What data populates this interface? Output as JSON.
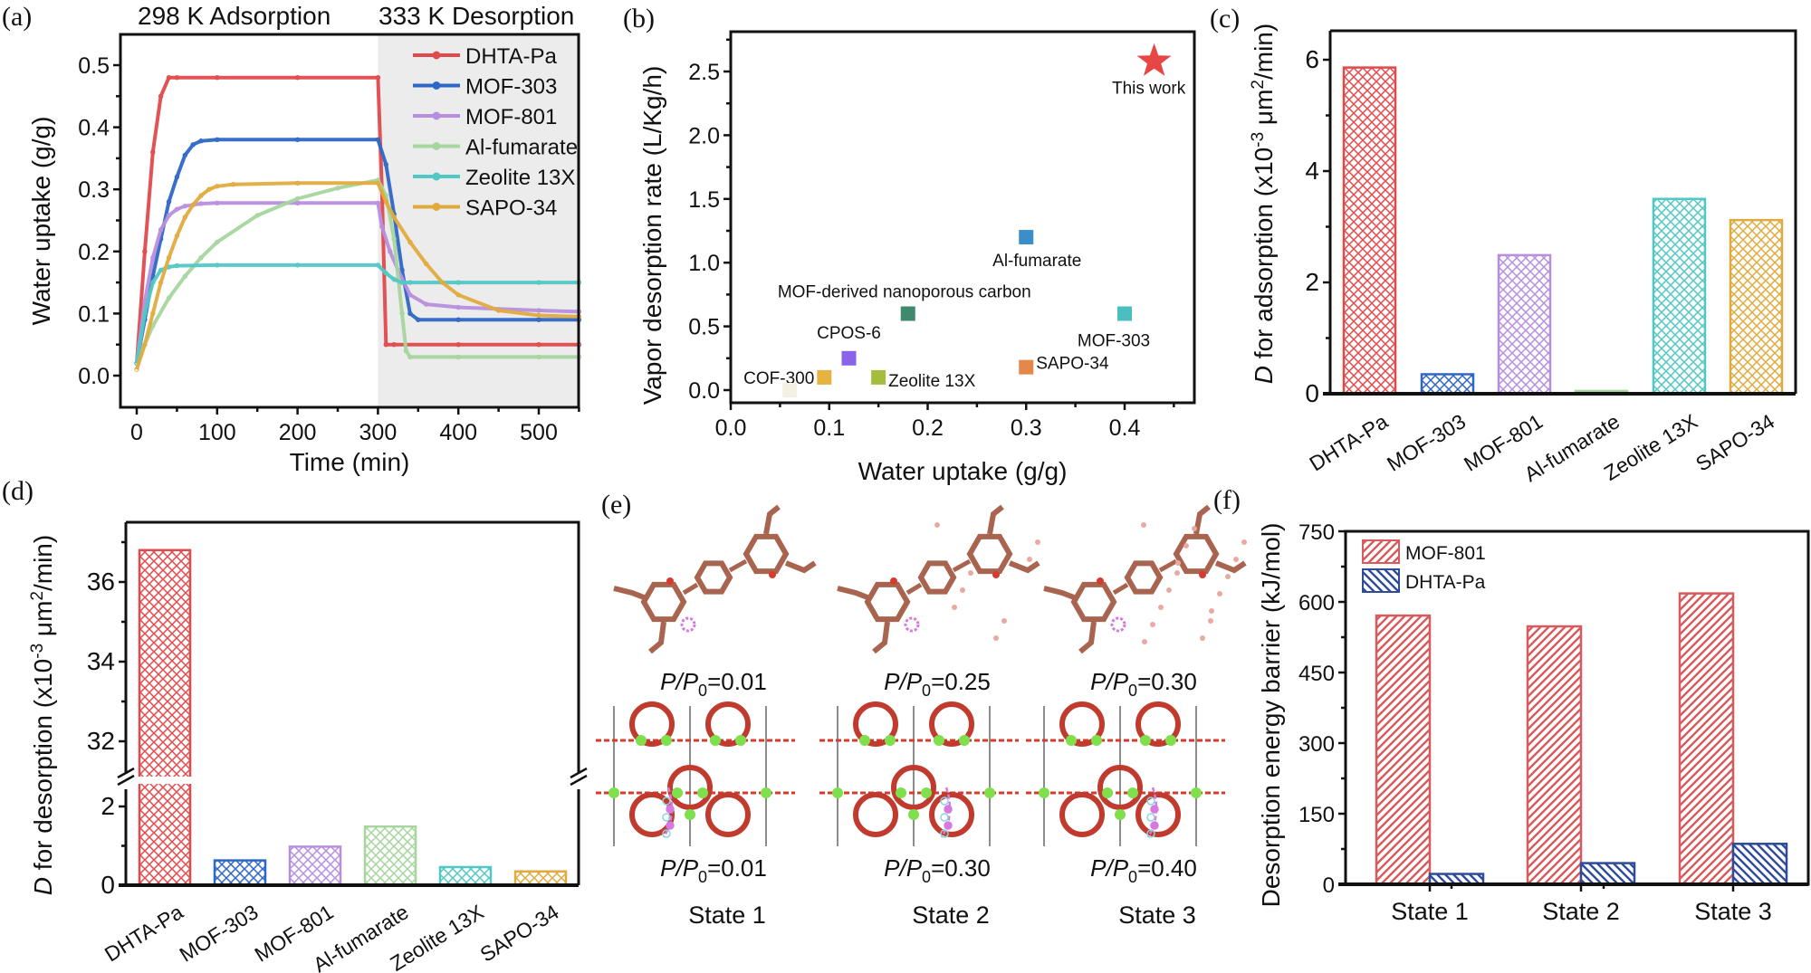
{
  "panels": {
    "a": {
      "letter": "(a)",
      "header_left": "298 K Adsorption",
      "header_right": "333 K Desorption"
    },
    "b": {
      "letter": "(b)"
    },
    "c": {
      "letter": "(c)"
    },
    "d": {
      "letter": "(d)"
    },
    "e": {
      "letter": "(e)",
      "columns": [
        {
          "top_label_var": "P/P",
          "top_label_sub": "0",
          "top_label_val": "=0.01",
          "bottom_label_var": "P/P",
          "bottom_label_sub": "0",
          "bottom_label_val": "=0.01",
          "state": "State 1"
        },
        {
          "top_label_var": "P/P",
          "top_label_sub": "0",
          "top_label_val": "=0.25",
          "bottom_label_var": "P/P",
          "bottom_label_sub": "0",
          "bottom_label_val": "=0.30",
          "state": "State 2"
        },
        {
          "top_label_var": "P/P",
          "top_label_sub": "0",
          "top_label_val": "=0.30",
          "bottom_label_var": "P/P",
          "bottom_label_sub": "0",
          "bottom_label_val": "=0.40",
          "state": "State 3"
        }
      ]
    },
    "f": {
      "letter": "(f)"
    }
  },
  "colors": {
    "DHTA-Pa": "#e04a4c",
    "MOF-303": "#2f67c6",
    "MOF-801": "#b88fdf",
    "Al-fumarate": "#a6d69d",
    "Zeolite 13X": "#52c8c4",
    "SAPO-34": "#e0ab3e",
    "desorption_shade": "#ececec",
    "b_this_work": "#e84545",
    "b_al_fumarate": "#3a8fc9",
    "b_mof_carbon": "#3f8a6c",
    "b_mof303": "#4bbfbf",
    "b_cpos6": "#8a63e8",
    "b_cof300": "#e6b240",
    "b_zeolite": "#a4bd3c",
    "b_sapo34": "#e5864a",
    "b_unlabeled": "#f4f1e4",
    "f_mof801": "#d85a5c",
    "f_dhta": "#2f4c99"
  },
  "chart_data": [
    {
      "id": "a",
      "type": "line",
      "title": "",
      "xlabel": "Time (min)",
      "ylabel": "Water uptake (g/g)",
      "xlim": [
        -20,
        550
      ],
      "ylim": [
        -0.05,
        0.55
      ],
      "xticks": [
        0,
        100,
        200,
        300,
        400,
        500
      ],
      "yticks": [
        0.0,
        0.1,
        0.2,
        0.3,
        0.4,
        0.5
      ],
      "ytick_labels": [
        "0.0",
        "0.1",
        "0.2",
        "0.3",
        "0.4",
        "0.5"
      ],
      "shaded_region": {
        "x_from": 300,
        "x_to": 550,
        "label": "333 K Desorption"
      },
      "legend_position": "top-right",
      "series": [
        {
          "name": "DHTA-Pa",
          "x": [
            0,
            10,
            20,
            30,
            40,
            50,
            100,
            200,
            300,
            305,
            310,
            320,
            400,
            500,
            550
          ],
          "y": [
            0.02,
            0.2,
            0.36,
            0.45,
            0.48,
            0.48,
            0.48,
            0.48,
            0.48,
            0.3,
            0.05,
            0.05,
            0.05,
            0.05,
            0.05
          ]
        },
        {
          "name": "MOF-303",
          "x": [
            0,
            10,
            20,
            30,
            40,
            50,
            60,
            70,
            80,
            100,
            200,
            300,
            310,
            320,
            330,
            340,
            350,
            400,
            500,
            550
          ],
          "y": [
            0.02,
            0.09,
            0.16,
            0.22,
            0.28,
            0.32,
            0.355,
            0.372,
            0.378,
            0.38,
            0.38,
            0.38,
            0.34,
            0.26,
            0.17,
            0.1,
            0.09,
            0.09,
            0.09,
            0.09
          ]
        },
        {
          "name": "MOF-801",
          "x": [
            0,
            10,
            20,
            30,
            40,
            50,
            60,
            80,
            100,
            200,
            300,
            305,
            315,
            325,
            340,
            360,
            400,
            500,
            550
          ],
          "y": [
            0.02,
            0.12,
            0.19,
            0.235,
            0.258,
            0.268,
            0.273,
            0.277,
            0.278,
            0.278,
            0.278,
            0.24,
            0.2,
            0.17,
            0.13,
            0.115,
            0.11,
            0.105,
            0.103
          ]
        },
        {
          "name": "Al-fumarate",
          "x": [
            0,
            20,
            40,
            60,
            80,
            100,
            150,
            200,
            250,
            300,
            310,
            320,
            330,
            335,
            340,
            400,
            500,
            550
          ],
          "y": [
            0.02,
            0.08,
            0.125,
            0.16,
            0.19,
            0.215,
            0.258,
            0.285,
            0.302,
            0.315,
            0.29,
            0.22,
            0.1,
            0.04,
            0.03,
            0.03,
            0.03,
            0.03
          ]
        },
        {
          "name": "Zeolite 13X",
          "x": [
            0,
            10,
            20,
            30,
            40,
            50,
            100,
            200,
            300,
            310,
            320,
            330,
            340,
            400,
            500,
            550
          ],
          "y": [
            0.02,
            0.1,
            0.15,
            0.17,
            0.175,
            0.177,
            0.178,
            0.178,
            0.178,
            0.165,
            0.155,
            0.15,
            0.15,
            0.15,
            0.15,
            0.15
          ]
        },
        {
          "name": "SAPO-34",
          "x": [
            0,
            10,
            20,
            30,
            40,
            50,
            60,
            70,
            80,
            90,
            100,
            120,
            200,
            300,
            310,
            320,
            340,
            360,
            380,
            400,
            450,
            500,
            550
          ],
          "y": [
            0.01,
            0.05,
            0.1,
            0.15,
            0.19,
            0.225,
            0.255,
            0.275,
            0.29,
            0.3,
            0.305,
            0.308,
            0.31,
            0.31,
            0.28,
            0.255,
            0.215,
            0.18,
            0.15,
            0.13,
            0.105,
            0.097,
            0.095
          ]
        }
      ]
    },
    {
      "id": "b",
      "type": "scatter",
      "title": "",
      "xlabel": "Water uptake (g/g)",
      "ylabel": "Vapor desorption rate (L/Kg/h)",
      "xlim": [
        0.0,
        0.47
      ],
      "ylim": [
        -0.1,
        2.8
      ],
      "xticks": [
        0.0,
        0.1,
        0.2,
        0.3,
        0.4
      ],
      "xtick_labels": [
        "0.0",
        "0.1",
        "0.2",
        "0.3",
        "0.4"
      ],
      "yticks": [
        0.0,
        0.5,
        1.0,
        1.5,
        2.0,
        2.5
      ],
      "ytick_labels": [
        "0.0",
        "0.5",
        "1.0",
        "1.5",
        "2.0",
        "2.5"
      ],
      "points": [
        {
          "label": "This work",
          "x": 0.43,
          "y": 2.58,
          "marker": "star",
          "color_key": "b_this_work",
          "label_pos": "below"
        },
        {
          "label": "Al-fumarate",
          "x": 0.3,
          "y": 1.2,
          "marker": "square",
          "color_key": "b_al_fumarate",
          "label_pos": "below"
        },
        {
          "label": "MOF-derived nanoporous carbon",
          "x": 0.18,
          "y": 0.6,
          "marker": "square",
          "color_key": "b_mof_carbon",
          "label_pos": "above"
        },
        {
          "label": "MOF-303",
          "x": 0.4,
          "y": 0.6,
          "marker": "square",
          "color_key": "b_mof303",
          "label_pos": "below"
        },
        {
          "label": "CPOS-6",
          "x": 0.12,
          "y": 0.25,
          "marker": "square",
          "color_key": "b_cpos6",
          "label_pos": "above"
        },
        {
          "label": "COF-300",
          "x": 0.095,
          "y": 0.1,
          "marker": "square",
          "color_key": "b_cof300",
          "label_pos": "left"
        },
        {
          "label": "Zeolite 13X",
          "x": 0.15,
          "y": 0.1,
          "marker": "square",
          "color_key": "b_zeolite",
          "label_pos": "right"
        },
        {
          "label": "SAPO-34",
          "x": 0.3,
          "y": 0.18,
          "marker": "square",
          "color_key": "b_sapo34",
          "label_pos": "right"
        },
        {
          "label": "",
          "x": 0.06,
          "y": 0.0,
          "marker": "square",
          "color_key": "b_unlabeled",
          "label_pos": "none"
        }
      ]
    },
    {
      "id": "c",
      "type": "bar",
      "title": "",
      "xlabel": "",
      "ylabel_italic": "D",
      "ylabel": " for adsorption (x10",
      "ylabel_sup1": "-3",
      "ylabel_mid": " μm",
      "ylabel_sup2": "2",
      "ylabel_end": "/min)",
      "categories": [
        "DHTA-Pa",
        "MOF-303",
        "MOF-801",
        "Al-fumarate",
        "Zeolite 13X",
        "SAPO-34"
      ],
      "values": [
        5.86,
        0.35,
        2.49,
        0.05,
        3.5,
        3.12
      ],
      "ylim": [
        0,
        6.5
      ],
      "yticks": [
        0,
        2,
        4,
        6
      ],
      "pattern": "crosshatch"
    },
    {
      "id": "d",
      "type": "bar",
      "title": "",
      "xlabel": "",
      "ylabel_italic": "D",
      "ylabel": " for desorption (x10",
      "ylabel_sup1": "-3",
      "ylabel_mid": " μm",
      "ylabel_sup2": "2",
      "ylabel_end": "/min)",
      "categories": [
        "DHTA-Pa",
        "MOF-303",
        "MOF-801",
        "Al-fumarate",
        "Zeolite 13X",
        "SAPO-34"
      ],
      "values": [
        36.8,
        0.63,
        0.98,
        1.49,
        0.46,
        0.35
      ],
      "axis_break": {
        "lower_range": [
          0,
          2.5
        ],
        "upper_range": [
          31,
          37.4
        ]
      },
      "yticks_lower": [
        0,
        2
      ],
      "yticks_upper": [
        32,
        34,
        36
      ],
      "pattern": "crosshatch"
    },
    {
      "id": "f",
      "type": "bar",
      "title": "",
      "xlabel": "",
      "ylabel": "Desorption energy barrier (kJ/mol)",
      "categories": [
        "State 1",
        "State 2",
        "State 3"
      ],
      "series": [
        {
          "name": "MOF-801",
          "values": [
            571,
            548,
            618
          ],
          "color_key": "f_mof801",
          "pattern": "diagonal-forward"
        },
        {
          "name": "DHTA-Pa",
          "values": [
            22,
            45,
            86
          ],
          "color_key": "f_dhta",
          "pattern": "diagonal-backward"
        }
      ],
      "ylim": [
        0,
        750
      ],
      "yticks": [
        0,
        150,
        300,
        450,
        600,
        750
      ],
      "legend_position": "top-left"
    }
  ]
}
